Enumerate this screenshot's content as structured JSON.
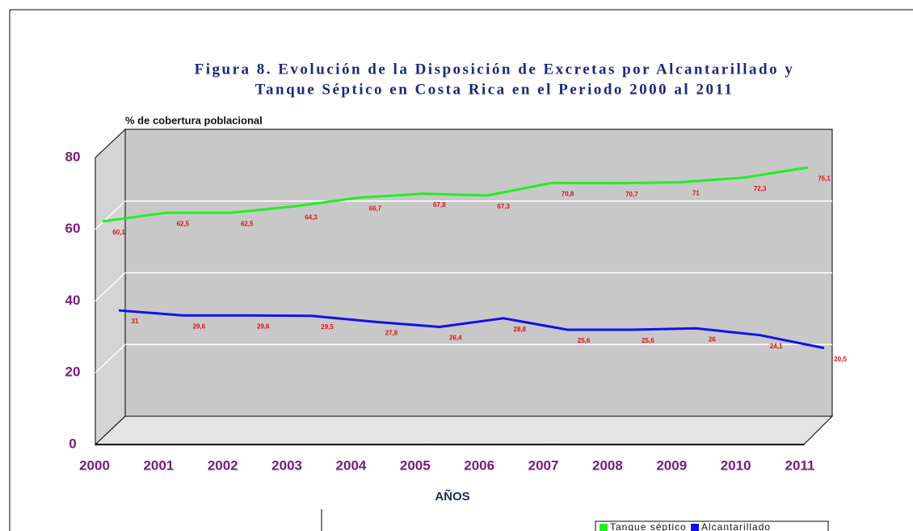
{
  "chart_data": {
    "type": "line",
    "title": "Figura 8. Evolución de la Disposición de Excretas por Alcantarillado y",
    "subtitle": "Tanque Séptico en Costa Rica en el Periodo 2000 al 2011",
    "y_label": "% de cobertura poblacional",
    "x_label": "AÑOS",
    "categories": [
      "2000",
      "2001",
      "2002",
      "2003",
      "2004",
      "2005",
      "2006",
      "2007",
      "2008",
      "2009",
      "2010",
      "2011"
    ],
    "series": [
      {
        "name": "Tanque séptico",
        "color": "#22ee22",
        "values": [
          60.1,
          62.5,
          62.5,
          64.3,
          66.7,
          67.8,
          67.3,
          70.8,
          70.7,
          71,
          72.3,
          75.1
        ],
        "value_labels": [
          "60,1",
          "62,5",
          "62,5",
          "64,3",
          "66,7",
          "67,8",
          "67,3",
          "70,8",
          "70,7",
          "71",
          "72,3",
          "75,1"
        ]
      },
      {
        "name": "Alcantarillado",
        "color": "#1111ee",
        "values": [
          31,
          29.6,
          29.6,
          29.5,
          27.8,
          26.4,
          28.8,
          25.6,
          25.6,
          26,
          24.1,
          20.5
        ],
        "value_labels": [
          "31",
          "29,6",
          "29,6",
          "29,5",
          "27,8",
          "26,4",
          "28,8",
          "25,6",
          "25,6",
          "26",
          "24,1",
          "20,5"
        ]
      }
    ],
    "ylim": [
      0,
      80
    ],
    "yticks": [
      0,
      20,
      40,
      60,
      80
    ],
    "grid": true,
    "legend": "bottom"
  }
}
